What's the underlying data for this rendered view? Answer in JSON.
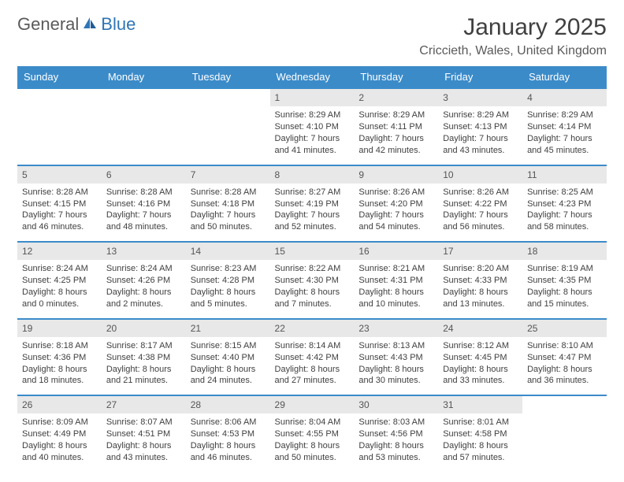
{
  "brand": {
    "word1": "General",
    "word2": "Blue"
  },
  "title": "January 2025",
  "location": "Criccieth, Wales, United Kingdom",
  "colors": {
    "header_bg": "#3b8bc9",
    "header_text": "#ffffff",
    "rule": "#3b8bc9",
    "daynum_bg": "#e8e8e8",
    "body_text": "#404040",
    "brand_blue": "#2e75b6",
    "brand_gray": "#5a5a5a"
  },
  "day_headers": [
    "Sunday",
    "Monday",
    "Tuesday",
    "Wednesday",
    "Thursday",
    "Friday",
    "Saturday"
  ],
  "weeks": [
    [
      null,
      null,
      null,
      {
        "n": "1",
        "sr": "Sunrise: 8:29 AM",
        "ss": "Sunset: 4:10 PM",
        "d1": "Daylight: 7 hours",
        "d2": "and 41 minutes."
      },
      {
        "n": "2",
        "sr": "Sunrise: 8:29 AM",
        "ss": "Sunset: 4:11 PM",
        "d1": "Daylight: 7 hours",
        "d2": "and 42 minutes."
      },
      {
        "n": "3",
        "sr": "Sunrise: 8:29 AM",
        "ss": "Sunset: 4:13 PM",
        "d1": "Daylight: 7 hours",
        "d2": "and 43 minutes."
      },
      {
        "n": "4",
        "sr": "Sunrise: 8:29 AM",
        "ss": "Sunset: 4:14 PM",
        "d1": "Daylight: 7 hours",
        "d2": "and 45 minutes."
      }
    ],
    [
      {
        "n": "5",
        "sr": "Sunrise: 8:28 AM",
        "ss": "Sunset: 4:15 PM",
        "d1": "Daylight: 7 hours",
        "d2": "and 46 minutes."
      },
      {
        "n": "6",
        "sr": "Sunrise: 8:28 AM",
        "ss": "Sunset: 4:16 PM",
        "d1": "Daylight: 7 hours",
        "d2": "and 48 minutes."
      },
      {
        "n": "7",
        "sr": "Sunrise: 8:28 AM",
        "ss": "Sunset: 4:18 PM",
        "d1": "Daylight: 7 hours",
        "d2": "and 50 minutes."
      },
      {
        "n": "8",
        "sr": "Sunrise: 8:27 AM",
        "ss": "Sunset: 4:19 PM",
        "d1": "Daylight: 7 hours",
        "d2": "and 52 minutes."
      },
      {
        "n": "9",
        "sr": "Sunrise: 8:26 AM",
        "ss": "Sunset: 4:20 PM",
        "d1": "Daylight: 7 hours",
        "d2": "and 54 minutes."
      },
      {
        "n": "10",
        "sr": "Sunrise: 8:26 AM",
        "ss": "Sunset: 4:22 PM",
        "d1": "Daylight: 7 hours",
        "d2": "and 56 minutes."
      },
      {
        "n": "11",
        "sr": "Sunrise: 8:25 AM",
        "ss": "Sunset: 4:23 PM",
        "d1": "Daylight: 7 hours",
        "d2": "and 58 minutes."
      }
    ],
    [
      {
        "n": "12",
        "sr": "Sunrise: 8:24 AM",
        "ss": "Sunset: 4:25 PM",
        "d1": "Daylight: 8 hours",
        "d2": "and 0 minutes."
      },
      {
        "n": "13",
        "sr": "Sunrise: 8:24 AM",
        "ss": "Sunset: 4:26 PM",
        "d1": "Daylight: 8 hours",
        "d2": "and 2 minutes."
      },
      {
        "n": "14",
        "sr": "Sunrise: 8:23 AM",
        "ss": "Sunset: 4:28 PM",
        "d1": "Daylight: 8 hours",
        "d2": "and 5 minutes."
      },
      {
        "n": "15",
        "sr": "Sunrise: 8:22 AM",
        "ss": "Sunset: 4:30 PM",
        "d1": "Daylight: 8 hours",
        "d2": "and 7 minutes."
      },
      {
        "n": "16",
        "sr": "Sunrise: 8:21 AM",
        "ss": "Sunset: 4:31 PM",
        "d1": "Daylight: 8 hours",
        "d2": "and 10 minutes."
      },
      {
        "n": "17",
        "sr": "Sunrise: 8:20 AM",
        "ss": "Sunset: 4:33 PM",
        "d1": "Daylight: 8 hours",
        "d2": "and 13 minutes."
      },
      {
        "n": "18",
        "sr": "Sunrise: 8:19 AM",
        "ss": "Sunset: 4:35 PM",
        "d1": "Daylight: 8 hours",
        "d2": "and 15 minutes."
      }
    ],
    [
      {
        "n": "19",
        "sr": "Sunrise: 8:18 AM",
        "ss": "Sunset: 4:36 PM",
        "d1": "Daylight: 8 hours",
        "d2": "and 18 minutes."
      },
      {
        "n": "20",
        "sr": "Sunrise: 8:17 AM",
        "ss": "Sunset: 4:38 PM",
        "d1": "Daylight: 8 hours",
        "d2": "and 21 minutes."
      },
      {
        "n": "21",
        "sr": "Sunrise: 8:15 AM",
        "ss": "Sunset: 4:40 PM",
        "d1": "Daylight: 8 hours",
        "d2": "and 24 minutes."
      },
      {
        "n": "22",
        "sr": "Sunrise: 8:14 AM",
        "ss": "Sunset: 4:42 PM",
        "d1": "Daylight: 8 hours",
        "d2": "and 27 minutes."
      },
      {
        "n": "23",
        "sr": "Sunrise: 8:13 AM",
        "ss": "Sunset: 4:43 PM",
        "d1": "Daylight: 8 hours",
        "d2": "and 30 minutes."
      },
      {
        "n": "24",
        "sr": "Sunrise: 8:12 AM",
        "ss": "Sunset: 4:45 PM",
        "d1": "Daylight: 8 hours",
        "d2": "and 33 minutes."
      },
      {
        "n": "25",
        "sr": "Sunrise: 8:10 AM",
        "ss": "Sunset: 4:47 PM",
        "d1": "Daylight: 8 hours",
        "d2": "and 36 minutes."
      }
    ],
    [
      {
        "n": "26",
        "sr": "Sunrise: 8:09 AM",
        "ss": "Sunset: 4:49 PM",
        "d1": "Daylight: 8 hours",
        "d2": "and 40 minutes."
      },
      {
        "n": "27",
        "sr": "Sunrise: 8:07 AM",
        "ss": "Sunset: 4:51 PM",
        "d1": "Daylight: 8 hours",
        "d2": "and 43 minutes."
      },
      {
        "n": "28",
        "sr": "Sunrise: 8:06 AM",
        "ss": "Sunset: 4:53 PM",
        "d1": "Daylight: 8 hours",
        "d2": "and 46 minutes."
      },
      {
        "n": "29",
        "sr": "Sunrise: 8:04 AM",
        "ss": "Sunset: 4:55 PM",
        "d1": "Daylight: 8 hours",
        "d2": "and 50 minutes."
      },
      {
        "n": "30",
        "sr": "Sunrise: 8:03 AM",
        "ss": "Sunset: 4:56 PM",
        "d1": "Daylight: 8 hours",
        "d2": "and 53 minutes."
      },
      {
        "n": "31",
        "sr": "Sunrise: 8:01 AM",
        "ss": "Sunset: 4:58 PM",
        "d1": "Daylight: 8 hours",
        "d2": "and 57 minutes."
      },
      null
    ]
  ]
}
